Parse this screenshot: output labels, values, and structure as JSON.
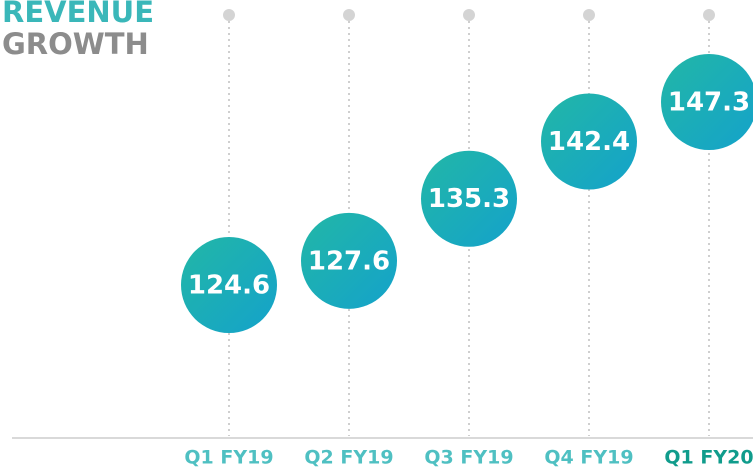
{
  "chart_data": {
    "type": "dot",
    "title": [
      "REVENUE",
      "GROWTH"
    ],
    "title_colors": [
      "#3ab7b9",
      "#8c8c8c"
    ],
    "categories": [
      "Q1 FY19",
      "Q2 FY19",
      "Q3 FY19",
      "Q4 FY19",
      "Q1 FY20"
    ],
    "values": [
      124.6,
      127.6,
      135.3,
      142.4,
      147.3
    ],
    "label_colors": [
      "#4fc0c2",
      "#4fc0c2",
      "#4fc0c2",
      "#4fc0c2",
      "#109c8c"
    ],
    "colors": [
      "#22b7a6",
      "#14a2cb"
    ]
  }
}
